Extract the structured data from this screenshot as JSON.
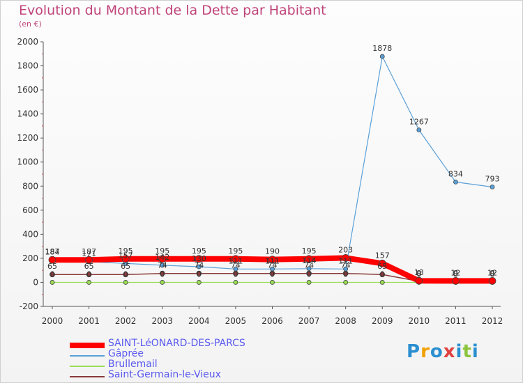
{
  "title": "Evolution du Montant de la Dette par Habitant",
  "unit": "(en €)",
  "logo": "Proxiti",
  "chart_data": {
    "type": "line",
    "x": [
      "2000",
      "2001",
      "2002",
      "2003",
      "2004",
      "2005",
      "2006",
      "2007",
      "2008",
      "2009",
      "2010",
      "2011",
      "2012"
    ],
    "ylim": [
      -200,
      2000
    ],
    "yticks": [
      -200,
      0,
      200,
      400,
      600,
      800,
      1000,
      1200,
      1400,
      1600,
      1800,
      2000
    ],
    "grid": false,
    "legend_placement": "bottom-left",
    "series": [
      {
        "name": "SAINT-LéONARD-DES-PARCS",
        "color": "#ff0000",
        "values": [
          187,
          187,
          195,
          195,
          195,
          195,
          190,
          195,
          203,
          157,
          13,
          12,
          12
        ]
      },
      {
        "name": "Gâprée",
        "color": "#5aa0d8",
        "values": [
          184,
          171,
          157,
          142,
          130,
          111,
          111,
          114,
          111,
          1878,
          1267,
          834,
          793
        ]
      },
      {
        "name": "Brullemail",
        "color": "#99dd55",
        "values": [
          0,
          0,
          0,
          0,
          0,
          0,
          0,
          0,
          0,
          0,
          0,
          0,
          0
        ]
      },
      {
        "name": "Saint-Germain-le-Vieux",
        "color": "#8b3a3a",
        "values": [
          65,
          65,
          65,
          74,
          74,
          74,
          74,
          74,
          74,
          65,
          9,
          9,
          9
        ]
      }
    ]
  }
}
